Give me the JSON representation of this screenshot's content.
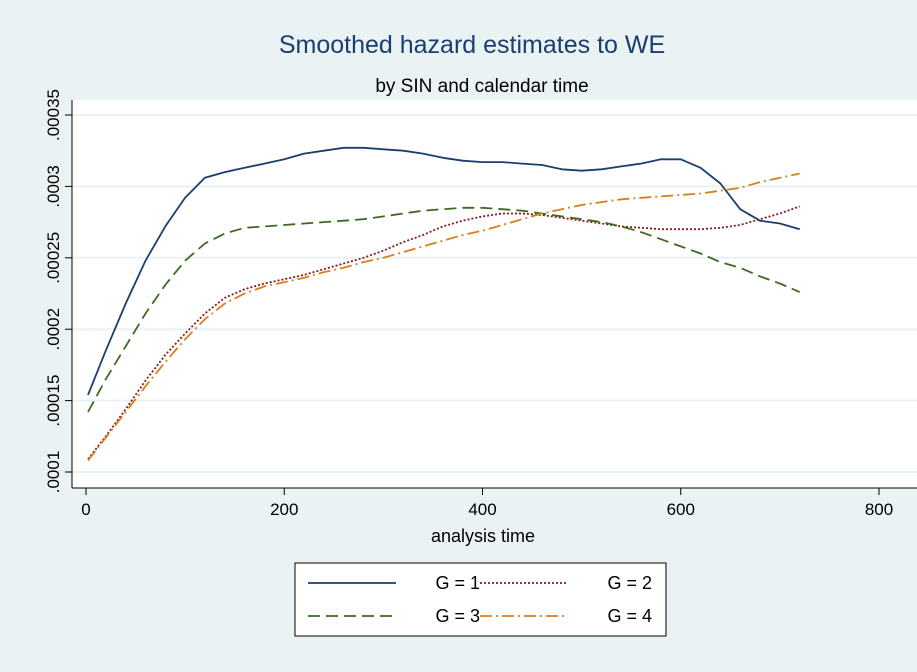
{
  "chart_data": {
    "type": "line",
    "title": "Smoothed hazard estimates to WE",
    "subtitle": "by SIN and calendar time",
    "xlabel": "analysis time",
    "ylabel": "",
    "xlim": [
      0,
      800
    ],
    "ylim": [
      0.0001,
      0.00035
    ],
    "x_ticks": [
      0,
      200,
      400,
      600,
      800
    ],
    "x_tick_labels": [
      "0",
      "200",
      "400",
      "600",
      "800"
    ],
    "y_ticks": [
      0.0001,
      0.00015,
      0.0002,
      0.00025,
      0.0003,
      0.00035
    ],
    "y_tick_labels": [
      ".0001",
      ".00015",
      ".0002",
      ".00025",
      ".0003",
      ".00035"
    ],
    "grid": true,
    "legend_position": "bottom",
    "series": [
      {
        "name": "G = 1",
        "color": "#1a3f6f",
        "dash": "solid",
        "x": [
          2,
          20,
          40,
          60,
          80,
          100,
          120,
          140,
          160,
          180,
          200,
          220,
          240,
          260,
          280,
          300,
          320,
          340,
          360,
          380,
          400,
          420,
          440,
          460,
          480,
          500,
          520,
          540,
          560,
          580,
          600,
          620,
          640,
          660,
          680,
          700,
          720
        ],
        "y": [
          0.000154,
          0.000185,
          0.000218,
          0.000248,
          0.000272,
          0.000292,
          0.000306,
          0.00031,
          0.000313,
          0.000316,
          0.000319,
          0.000323,
          0.000325,
          0.000327,
          0.000327,
          0.000326,
          0.000325,
          0.000323,
          0.00032,
          0.000318,
          0.000317,
          0.000317,
          0.000316,
          0.000315,
          0.000312,
          0.000311,
          0.000312,
          0.000314,
          0.000316,
          0.000319,
          0.000319,
          0.000313,
          0.000302,
          0.000284,
          0.000276,
          0.000274,
          0.00027
        ]
      },
      {
        "name": "G = 2",
        "color": "#8b1a1a",
        "dash": "dotted",
        "x": [
          2,
          20,
          40,
          60,
          80,
          100,
          120,
          140,
          160,
          180,
          200,
          220,
          240,
          260,
          280,
          300,
          320,
          340,
          360,
          380,
          400,
          420,
          440,
          460,
          480,
          500,
          520,
          540,
          560,
          580,
          600,
          620,
          640,
          660,
          680,
          700,
          720
        ],
        "y": [
          0.000109,
          0.000125,
          0.000144,
          0.000164,
          0.000182,
          0.000197,
          0.000211,
          0.000222,
          0.000228,
          0.000232,
          0.000235,
          0.000238,
          0.000242,
          0.000246,
          0.00025,
          0.000255,
          0.000261,
          0.000266,
          0.000272,
          0.000276,
          0.000279,
          0.000281,
          0.000281,
          0.00028,
          0.000278,
          0.000276,
          0.000274,
          0.000272,
          0.000271,
          0.00027,
          0.00027,
          0.00027,
          0.000271,
          0.000273,
          0.000277,
          0.000281,
          0.000286
        ]
      },
      {
        "name": "G = 3",
        "color": "#3f6b1f",
        "dash": "dashed",
        "x": [
          2,
          20,
          40,
          60,
          80,
          100,
          120,
          140,
          160,
          180,
          200,
          220,
          240,
          260,
          280,
          300,
          320,
          340,
          360,
          380,
          400,
          420,
          440,
          460,
          480,
          500,
          520,
          540,
          560,
          580,
          600,
          620,
          640,
          660,
          680,
          700,
          720
        ],
        "y": [
          0.000142,
          0.000165,
          0.000188,
          0.000211,
          0.000231,
          0.000248,
          0.00026,
          0.000267,
          0.000271,
          0.000272,
          0.000273,
          0.000274,
          0.000275,
          0.000276,
          0.000277,
          0.000279,
          0.000281,
          0.000283,
          0.000284,
          0.000285,
          0.000285,
          0.000284,
          0.000283,
          0.000281,
          0.000279,
          0.000277,
          0.000275,
          0.000272,
          0.000268,
          0.000263,
          0.000258,
          0.000253,
          0.000247,
          0.000243,
          0.000237,
          0.000232,
          0.000226
        ]
      },
      {
        "name": "G = 4",
        "color": "#d97f1a",
        "dash": "dashdot",
        "x": [
          2,
          20,
          40,
          60,
          80,
          100,
          120,
          140,
          160,
          180,
          200,
          220,
          240,
          260,
          280,
          300,
          320,
          340,
          360,
          380,
          400,
          420,
          440,
          460,
          480,
          500,
          520,
          540,
          560,
          580,
          600,
          620,
          640,
          660,
          680,
          700,
          720
        ],
        "y": [
          0.000108,
          0.000124,
          0.000142,
          0.00016,
          0.000177,
          0.000193,
          0.000207,
          0.000218,
          0.000225,
          0.00023,
          0.000233,
          0.000236,
          0.00024,
          0.000243,
          0.000247,
          0.00025,
          0.000254,
          0.000258,
          0.000262,
          0.000266,
          0.000269,
          0.000273,
          0.000277,
          0.000281,
          0.000284,
          0.000287,
          0.000289,
          0.000291,
          0.000292,
          0.000293,
          0.000294,
          0.000295,
          0.000297,
          0.000299,
          0.000303,
          0.000306,
          0.000309
        ]
      }
    ]
  },
  "legend": {
    "items": [
      {
        "label": "G = 1"
      },
      {
        "label": "G = 2"
      },
      {
        "label": "G = 3"
      },
      {
        "label": "G = 4"
      }
    ]
  }
}
